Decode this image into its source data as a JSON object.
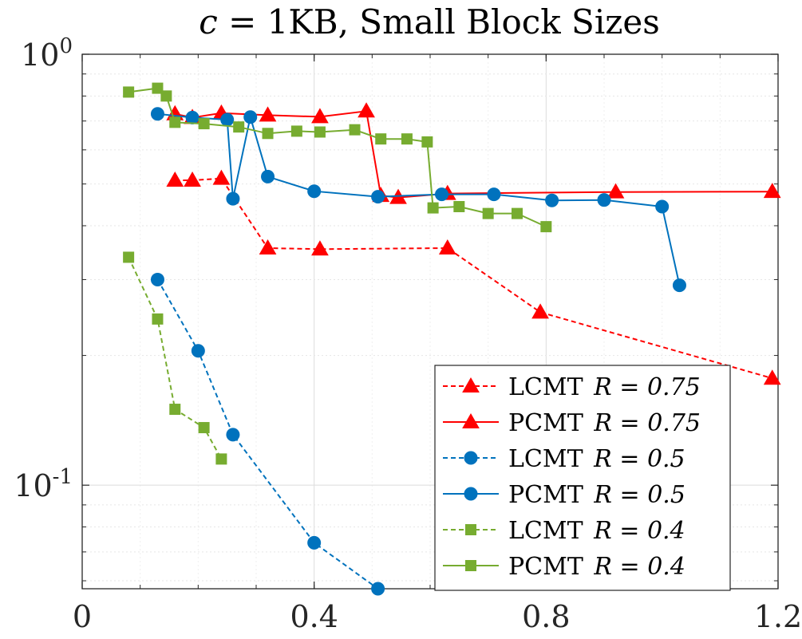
{
  "chart_data": {
    "type": "line",
    "title": "c = 1KB, Small Block Sizes",
    "title_italic": "c",
    "title_rest": " = 1KB, Small Block Sizes",
    "xlabel": "",
    "ylabel": "",
    "xlim": [
      0,
      1.2
    ],
    "ylim": [
      0.0575,
      1.0
    ],
    "yscale": "log",
    "grid": true,
    "legend_position": "bottom-right",
    "x_ticks": [
      {
        "value": 0,
        "label": "0"
      },
      {
        "value": 0.4,
        "label": "0.4"
      },
      {
        "value": 0.8,
        "label": "0.8"
      },
      {
        "value": 1.2,
        "label": "1.2"
      }
    ],
    "y_ticks": [
      {
        "value": 1.0,
        "base": "10",
        "exp": "0"
      },
      {
        "value": 0.1,
        "base": "10",
        "exp": "-1"
      }
    ],
    "series": [
      {
        "name": "LCMT R = 0.75",
        "label": "LCMT",
        "param": "R = 0.75",
        "color": "#ff0000",
        "dashed": true,
        "marker": "triangle",
        "x": [
          0.16,
          0.19,
          0.24,
          0.32,
          0.41,
          0.63,
          0.79,
          1.19
        ],
        "y": [
          0.51,
          0.51,
          0.515,
          0.355,
          0.353,
          0.355,
          0.252,
          0.177
        ]
      },
      {
        "name": "PCMT R = 0.75",
        "label": "PCMT",
        "param": "R = 0.75",
        "color": "#ff0000",
        "dashed": false,
        "marker": "triangle",
        "x": [
          0.16,
          0.19,
          0.24,
          0.32,
          0.41,
          0.49,
          0.515,
          0.545,
          0.63,
          0.92,
          1.19
        ],
        "y": [
          0.727,
          0.713,
          0.73,
          0.722,
          0.716,
          0.738,
          0.47,
          0.465,
          0.475,
          0.479,
          0.48
        ]
      },
      {
        "name": "LCMT R = 0.5",
        "label": "LCMT",
        "param": "R = 0.5",
        "color": "#0072bd",
        "dashed": true,
        "marker": "circle",
        "x": [
          0.13,
          0.2,
          0.26,
          0.4,
          0.51
        ],
        "y": [
          0.3,
          0.205,
          0.131,
          0.0735,
          0.0575
        ]
      },
      {
        "name": "PCMT R = 0.5",
        "label": "PCMT",
        "param": "R = 0.5",
        "color": "#0072bd",
        "dashed": false,
        "marker": "circle",
        "x": [
          0.13,
          0.19,
          0.25,
          0.26,
          0.29,
          0.32,
          0.4,
          0.51,
          0.62,
          0.71,
          0.81,
          0.9,
          1.0,
          1.03
        ],
        "y": [
          0.727,
          0.713,
          0.705,
          0.462,
          0.715,
          0.52,
          0.481,
          0.467,
          0.473,
          0.473,
          0.458,
          0.459,
          0.443,
          0.291
        ]
      },
      {
        "name": "LCMT R = 0.4",
        "label": "LCMT",
        "param": "R = 0.4",
        "color": "#77ac30",
        "dashed": true,
        "marker": "square",
        "x": [
          0.08,
          0.13,
          0.16,
          0.21,
          0.24
        ],
        "y": [
          0.338,
          0.243,
          0.15,
          0.136,
          0.115
        ]
      },
      {
        "name": "PCMT R = 0.4",
        "label": "PCMT",
        "param": "R = 0.4",
        "color": "#77ac30",
        "dashed": false,
        "marker": "square",
        "x": [
          0.08,
          0.13,
          0.145,
          0.16,
          0.21,
          0.27,
          0.32,
          0.37,
          0.41,
          0.47,
          0.515,
          0.56,
          0.595,
          0.605,
          0.65,
          0.7,
          0.75,
          0.8
        ],
        "y": [
          0.817,
          0.834,
          0.8,
          0.695,
          0.69,
          0.678,
          0.655,
          0.663,
          0.66,
          0.668,
          0.636,
          0.636,
          0.626,
          0.44,
          0.443,
          0.427,
          0.427,
          0.398
        ]
      }
    ]
  }
}
